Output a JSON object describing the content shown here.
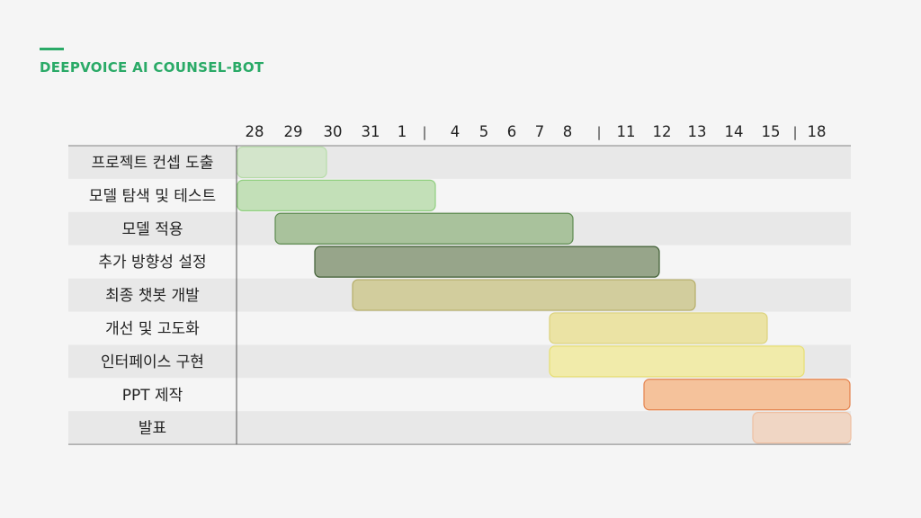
{
  "header": {
    "title": "DEEPVOICE AI COUNSEL-BOT"
  },
  "colors": {
    "accent": "#2aaa67",
    "row_shade": "#e8e8e8",
    "row_light": "#f5f5f5"
  },
  "chart_data": {
    "type": "gantt",
    "title": "",
    "x_ticks": [
      {
        "label": "28",
        "kind": "date"
      },
      {
        "label": "29",
        "kind": "date"
      },
      {
        "label": "30",
        "kind": "date"
      },
      {
        "label": "31",
        "kind": "date"
      },
      {
        "label": "1",
        "kind": "date"
      },
      {
        "label": "|",
        "kind": "separator"
      },
      {
        "label": "4",
        "kind": "date"
      },
      {
        "label": "5",
        "kind": "date"
      },
      {
        "label": "6",
        "kind": "date"
      },
      {
        "label": "7",
        "kind": "date"
      },
      {
        "label": "8",
        "kind": "date"
      },
      {
        "label": "|",
        "kind": "separator"
      },
      {
        "label": "11",
        "kind": "date"
      },
      {
        "label": "12",
        "kind": "date"
      },
      {
        "label": "13",
        "kind": "date"
      },
      {
        "label": "14",
        "kind": "date"
      },
      {
        "label": "15",
        "kind": "date"
      },
      {
        "label": "|",
        "kind": "separator"
      },
      {
        "label": "18",
        "kind": "date"
      }
    ],
    "tasks": [
      {
        "name": "프로젝트 컨셉 도출",
        "start": "28",
        "end": "29",
        "color": "#d3e5cb",
        "border": "#b7dca9"
      },
      {
        "name": "모델 탐색 및 테스트",
        "start": "28",
        "end": "1",
        "color": "#c3e0b8",
        "border": "#90cf7f"
      },
      {
        "name": "모델 적용",
        "start": "29",
        "end": "7",
        "color": "#a9c29c",
        "border": "#5d8b4f"
      },
      {
        "name": "추가 방향성 설정",
        "start": "30",
        "end": "11",
        "color": "#97a58a",
        "border": "#3e5d33"
      },
      {
        "name": "최종 챗봇 개발",
        "start": "31",
        "end": "12",
        "color": "#d2cd9d",
        "border": "#b5ad68"
      },
      {
        "name": "개선 및 고도화",
        "start": "8",
        "end": "14",
        "color": "#ebe3a4",
        "border": "#dbd27b"
      },
      {
        "name": "인터페이스 구현",
        "start": "8",
        "end": "15",
        "color": "#f1ebaa",
        "border": "#e7df72"
      },
      {
        "name": "PPT 제작",
        "start": "12",
        "end": "18",
        "color": "#f5c29b",
        "border": "#e4824d"
      },
      {
        "name": "발표",
        "start": "15",
        "end": "18",
        "color": "#f0d6c4",
        "border": "#eebfa1"
      }
    ]
  }
}
